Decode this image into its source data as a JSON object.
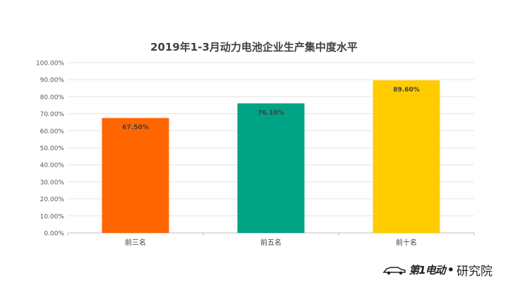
{
  "chart_data": {
    "type": "bar",
    "title": "2019年1-3月动力电池企业生产集中度水平",
    "categories": [
      "前三名",
      "前五名",
      "前十名"
    ],
    "values": [
      67.5,
      76.1,
      89.6
    ],
    "value_labels": [
      "67.50%",
      "76.10%",
      "89.60%"
    ],
    "colors": [
      "#FF6600",
      "#00A383",
      "#FFCC00"
    ],
    "ylim": [
      0,
      100
    ],
    "y_ticks": [
      "0.00%",
      "10.00%",
      "20.00%",
      "30.00%",
      "40.00%",
      "50.00%",
      "60.00%",
      "70.00%",
      "80.00%",
      "90.00%",
      "100.00%"
    ],
    "grid": true,
    "legend": "none"
  },
  "watermark": {
    "brand": "第1电动",
    "dot": "•",
    "suffix": "研究院",
    "icon": "car-icon"
  }
}
